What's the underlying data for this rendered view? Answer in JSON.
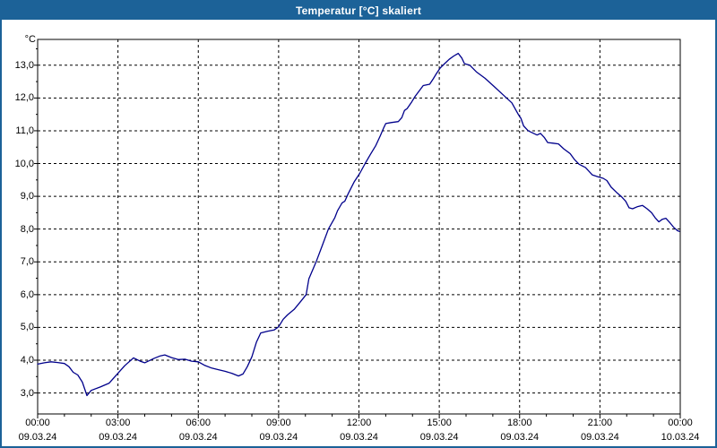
{
  "window": {
    "title": "Temperatur [°C] skaliert",
    "titlebar_color": "#1c6298",
    "border_color": "#1c6298",
    "background_color": "#ffffff"
  },
  "chart_data": {
    "type": "line",
    "title": "Temperatur [°C] skaliert",
    "series_name": "Temperatur",
    "line_color": "#00008b",
    "grid_color": "#000000",
    "frame_color": "#000000",
    "legend": "none",
    "grid": "dashed",
    "y_axis": {
      "unit_label": "°C",
      "range": [
        2.36,
        13.79
      ],
      "gridlines": [
        {
          "value": 13,
          "label": "13,0"
        },
        {
          "value": 12,
          "label": "12,0"
        },
        {
          "value": 11,
          "label": "11,0"
        },
        {
          "value": 10,
          "label": "10,0"
        },
        {
          "value": 9,
          "label": "9,0"
        },
        {
          "value": 8,
          "label": "8,0"
        },
        {
          "value": 7,
          "label": "7,0"
        },
        {
          "value": 6,
          "label": "6,0"
        },
        {
          "value": 5,
          "label": "5,0"
        },
        {
          "value": 4,
          "label": "4,0"
        },
        {
          "value": 3,
          "label": "3,0"
        }
      ],
      "minor_tick_step": 0.5
    },
    "x_axis": {
      "range_hours": [
        0,
        24
      ],
      "minor_tick_every_hours": 1,
      "ticks": [
        {
          "hour": 0,
          "time": "00:00",
          "date": "09.03.24"
        },
        {
          "hour": 3,
          "time": "03:00",
          "date": "09.03.24"
        },
        {
          "hour": 6,
          "time": "06:00",
          "date": "09.03.24"
        },
        {
          "hour": 9,
          "time": "09:00",
          "date": "09.03.24"
        },
        {
          "hour": 12,
          "time": "12:00",
          "date": "09.03.24"
        },
        {
          "hour": 15,
          "time": "15:00",
          "date": "09.03.24"
        },
        {
          "hour": 18,
          "time": "18:00",
          "date": "09.03.24"
        },
        {
          "hour": 21,
          "time": "21:00",
          "date": "09.03.24"
        },
        {
          "hour": 24,
          "time": "00:00",
          "date": "10.03.24"
        }
      ]
    },
    "points": [
      [
        0,
        3.88
      ],
      [
        0.25,
        3.92
      ],
      [
        0.5,
        3.95
      ],
      [
        0.75,
        3.93
      ],
      [
        1,
        3.9
      ],
      [
        1.17,
        3.8
      ],
      [
        1.33,
        3.63
      ],
      [
        1.5,
        3.55
      ],
      [
        1.67,
        3.33
      ],
      [
        1.84,
        2.92
      ],
      [
        2,
        3.08
      ],
      [
        2.33,
        3.18
      ],
      [
        2.67,
        3.3
      ],
      [
        3,
        3.6
      ],
      [
        3.25,
        3.83
      ],
      [
        3.58,
        4.07
      ],
      [
        3.83,
        3.97
      ],
      [
        4,
        3.92
      ],
      [
        4.33,
        4.05
      ],
      [
        4.58,
        4.13
      ],
      [
        4.75,
        4.16
      ],
      [
        5,
        4.08
      ],
      [
        5.25,
        4.02
      ],
      [
        5.5,
        4.03
      ],
      [
        5.75,
        3.97
      ],
      [
        6,
        3.95
      ],
      [
        6.25,
        3.84
      ],
      [
        6.5,
        3.76
      ],
      [
        6.75,
        3.71
      ],
      [
        7,
        3.66
      ],
      [
        7.25,
        3.6
      ],
      [
        7.5,
        3.52
      ],
      [
        7.67,
        3.58
      ],
      [
        7.83,
        3.8
      ],
      [
        8,
        4.1
      ],
      [
        8.17,
        4.55
      ],
      [
        8.33,
        4.83
      ],
      [
        8.58,
        4.88
      ],
      [
        8.83,
        4.92
      ],
      [
        9,
        5.02
      ],
      [
        9.17,
        5.25
      ],
      [
        9.33,
        5.38
      ],
      [
        9.58,
        5.55
      ],
      [
        9.83,
        5.8
      ],
      [
        10.03,
        6
      ],
      [
        10.13,
        6.48
      ],
      [
        10.4,
        7
      ],
      [
        10.63,
        7.5
      ],
      [
        10.86,
        8
      ],
      [
        11.1,
        8.35
      ],
      [
        11.2,
        8.56
      ],
      [
        11.37,
        8.8
      ],
      [
        11.47,
        8.85
      ],
      [
        11.6,
        9.08
      ],
      [
        11.83,
        9.45
      ],
      [
        12.03,
        9.7
      ],
      [
        12.23,
        10
      ],
      [
        12.43,
        10.28
      ],
      [
        12.63,
        10.55
      ],
      [
        12.8,
        10.85
      ],
      [
        12.93,
        11.1
      ],
      [
        13,
        11.22
      ],
      [
        13.2,
        11.25
      ],
      [
        13.47,
        11.28
      ],
      [
        13.6,
        11.4
      ],
      [
        13.7,
        11.62
      ],
      [
        13.8,
        11.68
      ],
      [
        13.97,
        11.88
      ],
      [
        14.1,
        12.05
      ],
      [
        14.3,
        12.27
      ],
      [
        14.4,
        12.38
      ],
      [
        14.64,
        12.42
      ],
      [
        14.77,
        12.58
      ],
      [
        14.9,
        12.75
      ],
      [
        15.03,
        12.91
      ],
      [
        15.2,
        13.05
      ],
      [
        15.37,
        13.18
      ],
      [
        15.54,
        13.28
      ],
      [
        15.71,
        13.36
      ],
      [
        15.84,
        13.22
      ],
      [
        15.94,
        13.05
      ],
      [
        16.05,
        13.02
      ],
      [
        16.14,
        13
      ],
      [
        16.38,
        12.8
      ],
      [
        16.71,
        12.6
      ],
      [
        17.05,
        12.35
      ],
      [
        17.38,
        12.1
      ],
      [
        17.71,
        11.85
      ],
      [
        17.95,
        11.5
      ],
      [
        18.05,
        11.38
      ],
      [
        18.15,
        11.15
      ],
      [
        18.32,
        11
      ],
      [
        18.45,
        10.95
      ],
      [
        18.65,
        10.87
      ],
      [
        18.78,
        10.92
      ],
      [
        18.92,
        10.8
      ],
      [
        19.05,
        10.64
      ],
      [
        19.25,
        10.62
      ],
      [
        19.45,
        10.6
      ],
      [
        19.65,
        10.45
      ],
      [
        19.89,
        10.3
      ],
      [
        20.05,
        10.12
      ],
      [
        20.22,
        9.98
      ],
      [
        20.46,
        9.88
      ],
      [
        20.72,
        9.65
      ],
      [
        20.92,
        9.6
      ],
      [
        21.12,
        9.55
      ],
      [
        21.26,
        9.48
      ],
      [
        21.42,
        9.28
      ],
      [
        21.62,
        9.12
      ],
      [
        21.79,
        9
      ],
      [
        21.96,
        8.85
      ],
      [
        22.09,
        8.65
      ],
      [
        22.22,
        8.62
      ],
      [
        22.39,
        8.68
      ],
      [
        22.59,
        8.72
      ],
      [
        22.76,
        8.62
      ],
      [
        22.93,
        8.5
      ],
      [
        23.06,
        8.35
      ],
      [
        23.2,
        8.22
      ],
      [
        23.33,
        8.3
      ],
      [
        23.46,
        8.33
      ],
      [
        23.63,
        8.18
      ],
      [
        23.76,
        8.05
      ],
      [
        23.9,
        7.95
      ],
      [
        23.97,
        7.93
      ]
    ]
  }
}
